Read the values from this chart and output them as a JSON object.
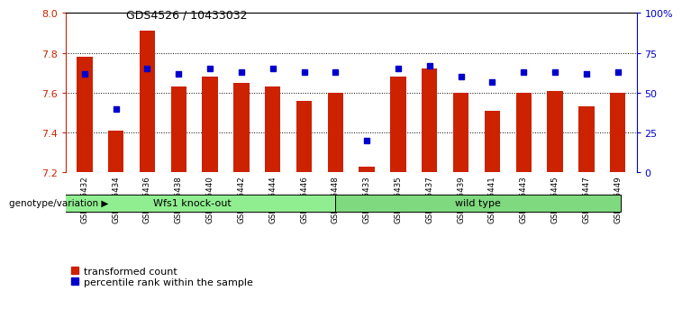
{
  "title": "GDS4526 / 10433032",
  "samples": [
    "GSM825432",
    "GSM825434",
    "GSM825436",
    "GSM825438",
    "GSM825440",
    "GSM825442",
    "GSM825444",
    "GSM825446",
    "GSM825448",
    "GSM825433",
    "GSM825435",
    "GSM825437",
    "GSM825439",
    "GSM825441",
    "GSM825443",
    "GSM825445",
    "GSM825447",
    "GSM825449"
  ],
  "transformed_counts": [
    7.78,
    7.41,
    7.91,
    7.63,
    7.68,
    7.65,
    7.63,
    7.56,
    7.6,
    7.23,
    7.68,
    7.72,
    7.6,
    7.51,
    7.6,
    7.61,
    7.53,
    7.6
  ],
  "percentile_ranks": [
    62,
    40,
    65,
    62,
    65,
    63,
    65,
    63,
    63,
    20,
    65,
    67,
    60,
    57,
    63,
    63,
    62,
    63
  ],
  "groups": [
    "Wfs1 knock-out",
    "Wfs1 knock-out",
    "Wfs1 knock-out",
    "Wfs1 knock-out",
    "Wfs1 knock-out",
    "Wfs1 knock-out",
    "Wfs1 knock-out",
    "Wfs1 knock-out",
    "Wfs1 knock-out",
    "wild type",
    "wild type",
    "wild type",
    "wild type",
    "wild type",
    "wild type",
    "wild type",
    "wild type",
    "wild type"
  ],
  "group_colors": {
    "Wfs1 knock-out": "#90EE90",
    "wild type": "#7FD97F"
  },
  "ymin": 7.2,
  "ymax": 8.0,
  "yticks": [
    7.2,
    7.4,
    7.6,
    7.8,
    8.0
  ],
  "right_yticks": [
    0,
    25,
    50,
    75,
    100
  ],
  "right_ytick_labels": [
    "0",
    "25",
    "50",
    "75",
    "100%"
  ],
  "bar_color": "#CC2200",
  "dot_color": "#0000CC",
  "bar_width": 0.5,
  "xlabel_left": "genotype/variation",
  "left_yaxis_color": "#CC2200",
  "right_yaxis_color": "#0000CC",
  "legend_items": [
    "transformed count",
    "percentile rank within the sample"
  ],
  "legend_colors": [
    "#CC2200",
    "#0000CC"
  ]
}
